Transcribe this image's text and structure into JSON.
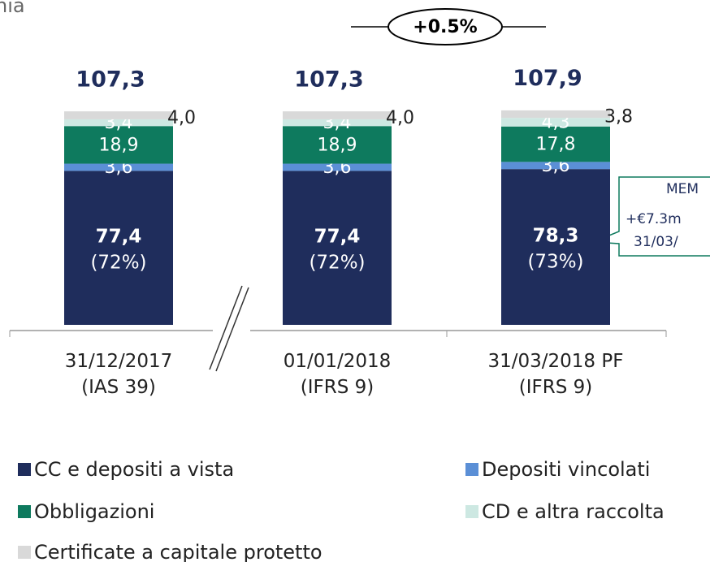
{
  "chart_data": {
    "type": "stacked_bar",
    "header_fragment": "nia",
    "categories": [
      "31/12/2017\n(IAS 39)",
      "01/01/2018\n(IFRS 9)",
      "31/03/2018 PF\n(IFRS 9)"
    ],
    "series": [
      {
        "name": "CC e depositi a vista",
        "color": "#1f2d5c",
        "values": [
          77.4,
          77.4,
          78.3
        ],
        "value_labels": [
          "77,4",
          "77,4",
          "78,3"
        ],
        "shares": [
          72,
          72,
          73
        ],
        "share_labels": [
          "(72%)",
          "(72%)",
          "(73%)"
        ]
      },
      {
        "name": "Depositi vincolati",
        "color": "#5b8fd6",
        "values": [
          3.6,
          3.6,
          3.6
        ],
        "value_labels": [
          "3,6",
          "3,6",
          "3,6"
        ]
      },
      {
        "name": "Obbligazioni",
        "color": "#0e7a5e",
        "values": [
          18.9,
          18.9,
          17.8
        ],
        "value_labels": [
          "18,9",
          "18,9",
          "17,8"
        ]
      },
      {
        "name": "CD e altra raccolta",
        "color": "#cde8e2",
        "values": [
          3.4,
          3.4,
          4.3
        ],
        "value_labels": [
          "3,4",
          "3,4",
          "4,3"
        ]
      },
      {
        "name": "Certificate a capitale protetto",
        "color": "#d9d9d9",
        "values": [
          4.0,
          4.0,
          3.8
        ],
        "value_labels": [
          "4,0",
          "4,0",
          "3,8"
        ]
      }
    ],
    "totals": [
      107.3,
      107.3,
      107.9
    ],
    "total_labels": [
      "107,3",
      "107,3",
      "107,9"
    ],
    "change_annotation": "+0.5%",
    "callout": [
      "MEM",
      "+€7.3m",
      "31/03/"
    ]
  }
}
